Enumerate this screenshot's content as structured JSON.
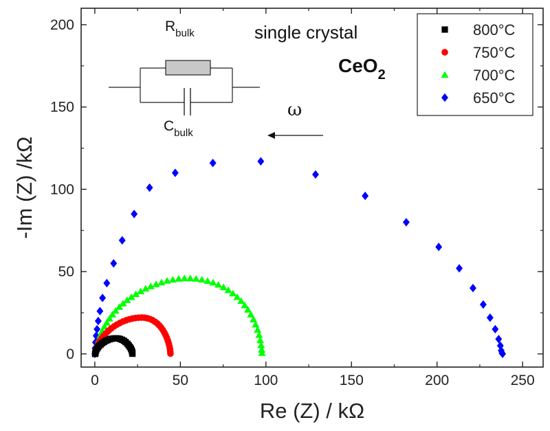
{
  "chart_data": {
    "type": "scatter",
    "xlabel": "Re (Z) / kΩ",
    "ylabel": "-Im (Z) /kΩ",
    "xlim": [
      -8,
      262
    ],
    "ylim": [
      -8,
      210
    ],
    "xticks": [
      0,
      50,
      100,
      150,
      200,
      250
    ],
    "yticks": [
      0,
      50,
      100,
      150,
      200
    ],
    "legend_position": "top-right",
    "annotations": {
      "line1": "single crystal",
      "formula_main": "CeO",
      "formula_sub": "2",
      "omega": "ω",
      "r_main": "R",
      "r_sub": "bulk",
      "c_main": "C",
      "c_sub": "bulk"
    },
    "series": [
      {
        "name": "800°C",
        "color": "#000000",
        "marker": "square",
        "x": [
          0.2,
          0.4,
          0.7,
          1.2,
          1.8,
          2.5,
          3.4,
          4.3,
          5.3,
          6.4,
          7.5,
          8.7,
          9.9,
          11.1,
          12.3,
          13.5,
          14.7,
          15.9,
          17.0,
          18.0,
          19.0,
          19.8,
          20.5,
          21.1,
          21.5,
          21.8,
          21.9,
          22.0
        ],
        "y": [
          0.0,
          1.0,
          2.0,
          3.0,
          4.0,
          4.8,
          5.7,
          6.5,
          7.2,
          7.9,
          8.4,
          8.9,
          9.2,
          9.4,
          9.5,
          9.4,
          9.1,
          8.6,
          8.0,
          7.2,
          6.2,
          5.2,
          4.2,
          3.2,
          2.2,
          1.3,
          0.6,
          0.1
        ]
      },
      {
        "name": "750°C",
        "color": "#ff0000",
        "marker": "circle",
        "x": [
          0.3,
          0.7,
          1.3,
          2.0,
          2.9,
          4.0,
          5.2,
          6.5,
          8.0,
          9.5,
          11.2,
          12.9,
          14.7,
          16.5,
          18.3,
          20.1,
          21.9,
          23.7,
          25.5,
          27.3,
          29.0,
          30.6,
          32.2,
          33.7,
          35.1,
          36.4,
          37.6,
          38.7,
          39.7,
          40.6,
          41.4,
          42.1,
          42.7,
          43.2,
          43.6,
          43.9,
          44.1,
          44.2
        ],
        "y": [
          0.2,
          2.0,
          3.9,
          5.9,
          7.7,
          9.4,
          11.0,
          12.5,
          14.0,
          15.4,
          16.7,
          17.8,
          18.8,
          19.7,
          20.4,
          21.0,
          21.5,
          21.8,
          22.0,
          22.1,
          22.0,
          21.7,
          21.2,
          20.5,
          19.6,
          18.6,
          17.4,
          16.1,
          14.6,
          13.0,
          11.4,
          9.7,
          8.0,
          6.3,
          4.6,
          3.0,
          1.5,
          0.2
        ]
      },
      {
        "name": "700°C",
        "color": "#00ff00",
        "marker": "triangle",
        "x": [
          0.5,
          0.9,
          1.5,
          2.3,
          3.2,
          4.3,
          5.6,
          7.0,
          8.6,
          10.3,
          12.2,
          14.3,
          16.5,
          18.9,
          21.4,
          24.0,
          26.8,
          29.7,
          32.7,
          35.8,
          39.0,
          42.3,
          45.6,
          49.0,
          52.4,
          55.8,
          59.2,
          62.6,
          65.9,
          69.1,
          72.2,
          75.2,
          78.0,
          80.7,
          83.2,
          85.5,
          87.6,
          89.5,
          91.2,
          92.7,
          94.0,
          95.1,
          96.0,
          96.7,
          97.2,
          97.5,
          97.7
        ],
        "y": [
          0.5,
          3.0,
          5.8,
          8.5,
          11.2,
          13.9,
          16.5,
          19.0,
          21.5,
          23.9,
          26.2,
          28.5,
          30.6,
          32.6,
          34.5,
          36.3,
          38.0,
          39.6,
          41.0,
          42.3,
          43.4,
          44.4,
          45.1,
          45.6,
          45.9,
          45.9,
          45.6,
          45.1,
          44.3,
          43.3,
          42.0,
          40.5,
          38.7,
          36.7,
          34.5,
          32.1,
          29.5,
          26.8,
          23.9,
          20.9,
          17.8,
          14.6,
          11.4,
          8.2,
          5.2,
          2.5,
          0.5
        ]
      },
      {
        "name": "650°C",
        "color": "#0000ff",
        "marker": "diamond",
        "x": [
          0.0,
          0.2,
          0.4,
          0.8,
          1.3,
          2.0,
          3.0,
          4.5,
          7.0,
          11.0,
          16.0,
          23.0,
          32.0,
          47.0,
          69.0,
          97.0,
          129.0,
          158.0,
          182.0,
          201.0,
          213.0,
          221.0,
          227.0,
          231.0,
          234.0,
          236.0,
          237.0,
          237.5,
          238.0,
          238.3
        ],
        "y": [
          0.0,
          3.5,
          7.0,
          11.0,
          15.0,
          20.0,
          26.0,
          34.0,
          43.0,
          55.0,
          69.0,
          85.0,
          101.0,
          110.0,
          116.0,
          117.0,
          109.0,
          96.0,
          80.0,
          65.0,
          52.0,
          40.0,
          30.0,
          22.0,
          15.0,
          9.0,
          5.0,
          2.0,
          0.5,
          0.0
        ]
      }
    ]
  }
}
